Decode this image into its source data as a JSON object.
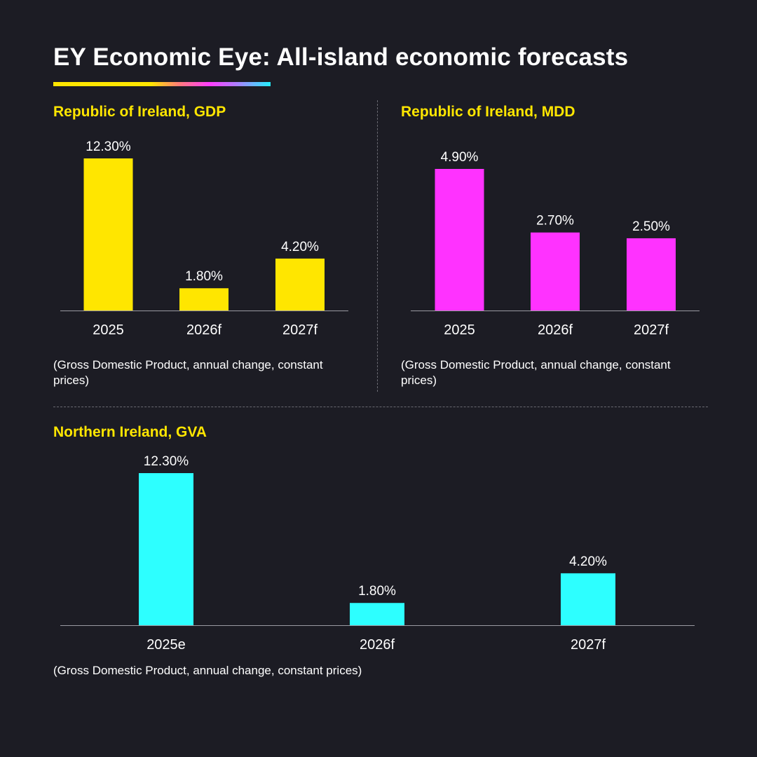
{
  "title": "EY Economic Eye: All-island economic forecasts",
  "colors": {
    "background": "#1c1c24",
    "accent_yellow": "#ffe600",
    "magenta": "#ff32ff",
    "cyan": "#2dffff",
    "axis": "#9a9aa2"
  },
  "chart_data": [
    {
      "type": "bar",
      "title": "Republic of Ireland, GDP",
      "categories": [
        "2025",
        "2026f",
        "2027f"
      ],
      "values": [
        12.3,
        1.8,
        4.2
      ],
      "value_labels": [
        "12.30%",
        "1.80%",
        "4.20%"
      ],
      "color": "#ffe600",
      "ylim": [
        0,
        12.3
      ],
      "note": "(Gross Domestic Product, annual change, constant prices)"
    },
    {
      "type": "bar",
      "title": "Republic of Ireland, MDD",
      "categories": [
        "2025",
        "2026f",
        "2027f"
      ],
      "values": [
        4.9,
        2.7,
        2.5
      ],
      "value_labels": [
        "4.90%",
        "2.70%",
        "2.50%"
      ],
      "color": "#ff32ff",
      "ylim": [
        0,
        4.9
      ],
      "note": "(Gross Domestic Product, annual change, constant prices)"
    },
    {
      "type": "bar",
      "title": "Northern Ireland, GVA",
      "categories": [
        "2025e",
        "2026f",
        "2027f"
      ],
      "values": [
        12.3,
        1.8,
        4.2
      ],
      "value_labels": [
        "12.30%",
        "1.80%",
        "4.20%"
      ],
      "color": "#2dffff",
      "ylim": [
        0,
        12.3
      ],
      "note": "(Gross Domestic Product, annual change, constant prices)"
    }
  ]
}
